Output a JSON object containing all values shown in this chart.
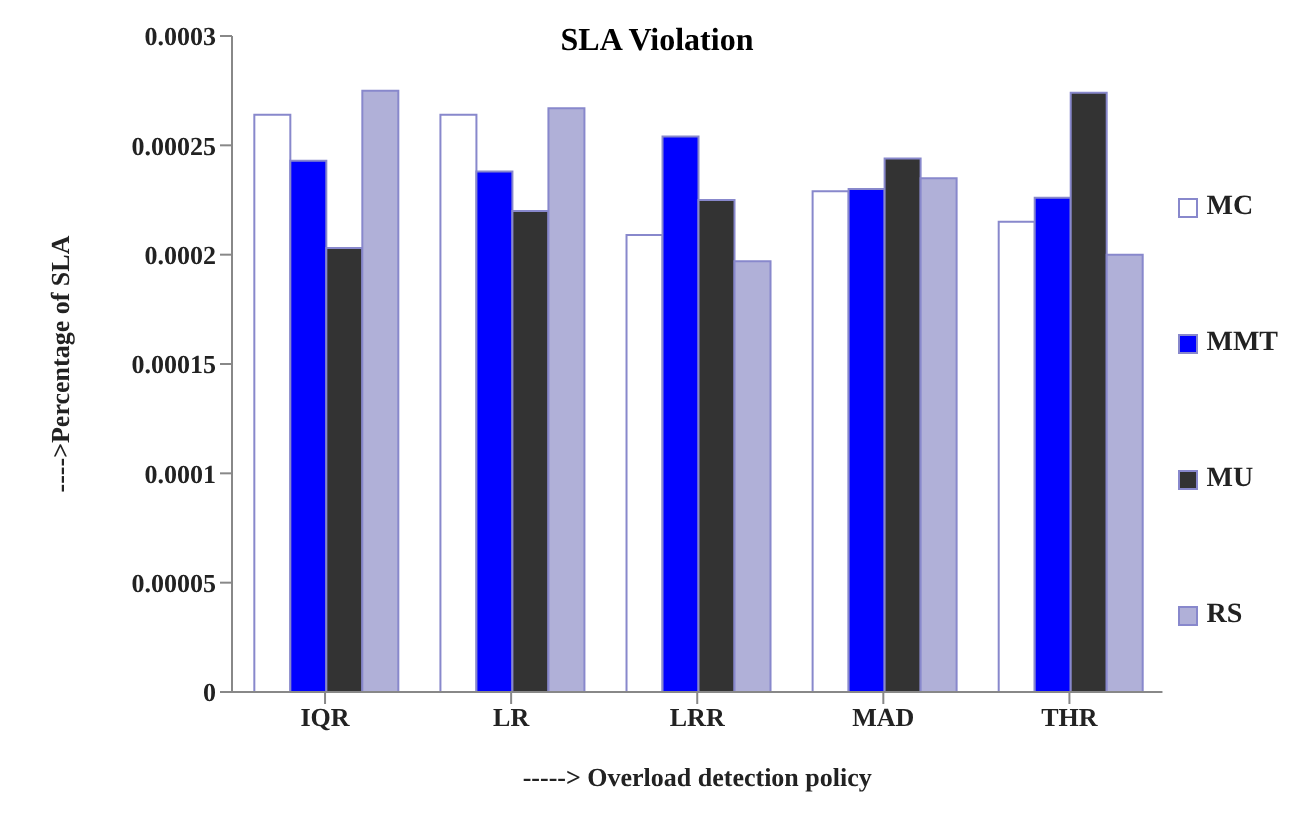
{
  "chart_data": {
    "type": "bar",
    "title": "SLA Violation",
    "xlabel": "-----> Overload detection policy",
    "ylabel": "---->Percentage of SLA",
    "categories": [
      "IQR",
      "LR",
      "LRR",
      "MAD",
      "THR"
    ],
    "series": [
      {
        "name": "MC",
        "color": "#ffffff",
        "values": [
          0.000264,
          0.000264,
          0.000209,
          0.000229,
          0.000215
        ]
      },
      {
        "name": "MMT",
        "color": "#0000ff",
        "values": [
          0.000243,
          0.000238,
          0.000254,
          0.00023,
          0.000226
        ]
      },
      {
        "name": "MU",
        "color": "#333333",
        "values": [
          0.000203,
          0.00022,
          0.000225,
          0.000244,
          0.000274
        ]
      },
      {
        "name": "RS",
        "color": "#b0b0d8",
        "values": [
          0.000275,
          0.000267,
          0.000197,
          0.000235,
          0.0002
        ]
      }
    ],
    "ylim": [
      0,
      0.0003
    ],
    "yticks": [
      0,
      {
        "value": 5e-05,
        "label": "0.00005"
      },
      0.0001,
      0.00015,
      0.0002,
      0.00025,
      0.0003
    ],
    "grid": false,
    "legend": "right"
  }
}
